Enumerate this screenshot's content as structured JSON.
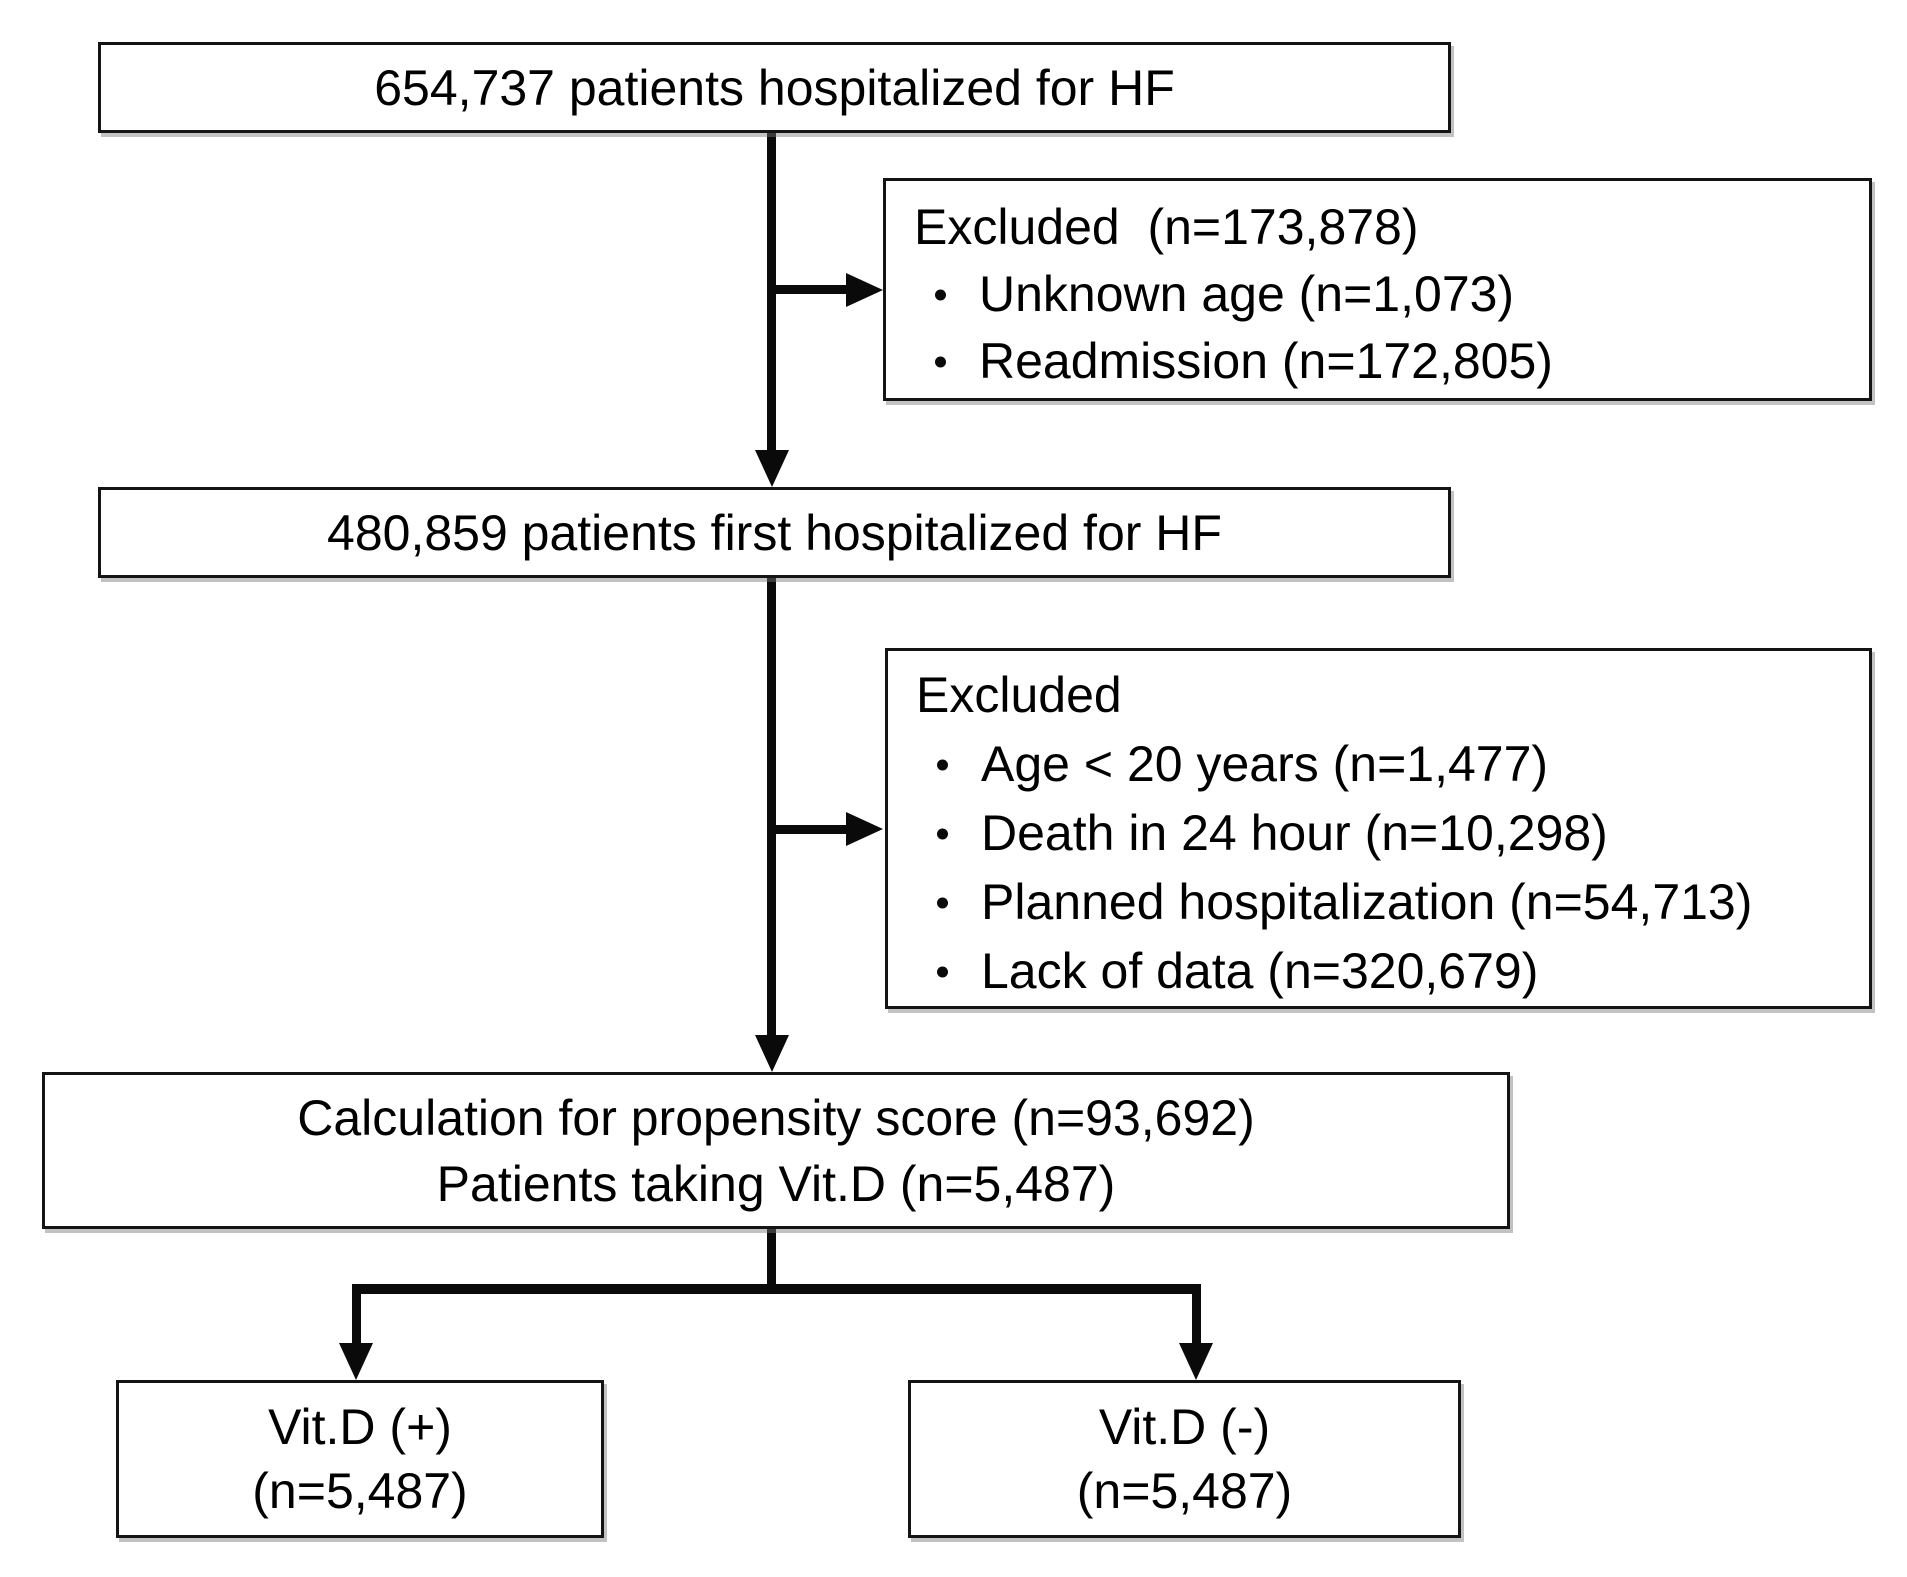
{
  "figure": {
    "type": "patient-flow-diagram",
    "background": "#ffffff",
    "box_border_color": "#141414",
    "arrow_color": "#0a0a0a",
    "text_color": "#000000"
  },
  "boxes": {
    "top": {
      "text": "654,737 patients hospitalized for HF"
    },
    "excluded_first": {
      "title": "Excluded  (n=173,878)",
      "items": [
        "Unknown age (n=1,073)",
        "Readmission (n=172,805)"
      ]
    },
    "first_hospitalized": {
      "text": "480,859 patients first hospitalized for HF"
    },
    "excluded_second": {
      "title": "Excluded",
      "items": [
        "Age < 20 years (n=1,477)",
        "Death in 24 hour (n=10,298)",
        "Planned hospitalization (n=54,713)",
        "Lack of data (n=320,679)"
      ]
    },
    "propensity": {
      "line1": "Calculation for propensity score (n=93,692)",
      "line2": "Patients taking Vit.D (n=5,487)"
    },
    "vitd_positive": {
      "line1": "Vit.D (+)",
      "line2": "(n=5,487)"
    },
    "vitd_negative": {
      "line1": "Vit.D (-)",
      "line2": "(n=5,487)"
    }
  }
}
